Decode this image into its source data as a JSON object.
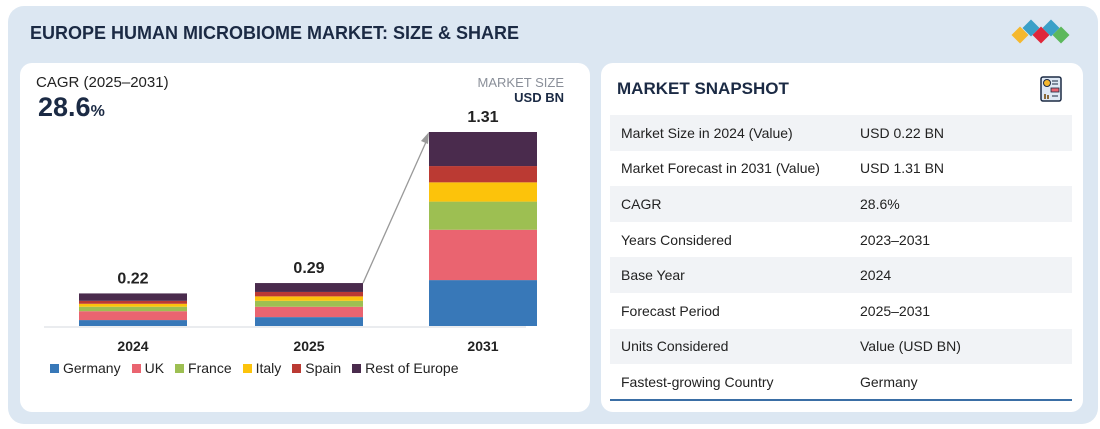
{
  "header": {
    "title": "EUROPE HUMAN MICROBIOME MARKET: SIZE & SHARE",
    "logo_colors": [
      "#f5b82e",
      "#3aa0c8",
      "#e0273a",
      "#3aa0c8",
      "#5cb85c"
    ]
  },
  "cagr": {
    "label": "CAGR (2025–2031)",
    "value": "28.6",
    "unit": "%"
  },
  "market_size": {
    "label": "MARKET SIZE",
    "unit": "USD BN"
  },
  "chart_data": {
    "type": "bar",
    "stacked": true,
    "categories": [
      "2024",
      "2025",
      "2031"
    ],
    "totals": [
      "0.22",
      "0.29",
      "1.31"
    ],
    "series": [
      {
        "name": "Germany",
        "color": "#3878b8",
        "values": [
          0.04,
          0.06,
          0.31
        ]
      },
      {
        "name": "UK",
        "color": "#ea6470",
        "values": [
          0.06,
          0.07,
          0.34
        ]
      },
      {
        "name": "France",
        "color": "#9dbf52",
        "values": [
          0.03,
          0.04,
          0.19
        ]
      },
      {
        "name": "Italy",
        "color": "#fcc30b",
        "values": [
          0.02,
          0.03,
          0.13
        ]
      },
      {
        "name": "Spain",
        "color": "#bb3a33",
        "values": [
          0.02,
          0.03,
          0.11
        ]
      },
      {
        "name": "Rest of Europe",
        "color": "#4a2b4d",
        "values": [
          0.05,
          0.06,
          0.23
        ]
      }
    ],
    "ylim": [
      0,
      1.31
    ],
    "grid": false,
    "legend": "bottom"
  },
  "snapshot": {
    "title": "MARKET SNAPSHOT",
    "rows": [
      {
        "label": "Market Size in 2024 (Value)",
        "value": "USD 0.22 BN"
      },
      {
        "label": "Market Forecast in 2031 (Value)",
        "value": "USD 1.31 BN"
      },
      {
        "label": "CAGR",
        "value": "28.6%"
      },
      {
        "label": "Years Considered",
        "value": "2023–2031"
      },
      {
        "label": "Base Year",
        "value": "2024"
      },
      {
        "label": "Forecast Period",
        "value": "2025–2031"
      },
      {
        "label": "Units Considered",
        "value": "Value (USD BN)"
      },
      {
        "label": "Fastest-growing Country",
        "value": "Germany"
      }
    ]
  }
}
